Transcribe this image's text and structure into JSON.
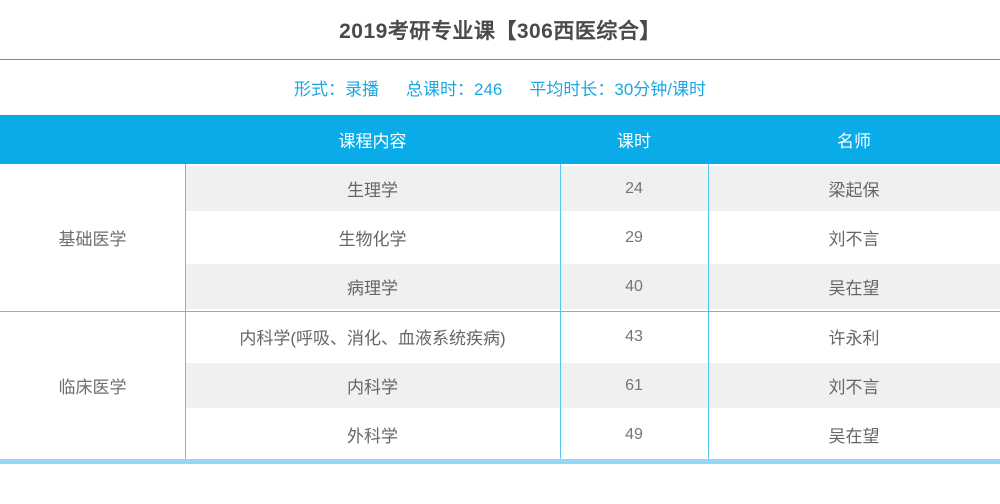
{
  "page": {
    "title": "2019考研专业课【306西医综合】"
  },
  "meta": {
    "format": "形式：录播",
    "total_hours": "总课时：246",
    "avg_duration": "平均时长：30分钟/课时"
  },
  "table": {
    "headers": {
      "content": "课程内容",
      "hours": "课时",
      "teacher": "名师"
    },
    "groups": [
      {
        "category": "基础医学",
        "rows": [
          {
            "content": "生理学",
            "hours": "24",
            "teacher": "梁起保"
          },
          {
            "content": "生物化学",
            "hours": "29",
            "teacher": "刘不言"
          },
          {
            "content": "病理学",
            "hours": "40",
            "teacher": "吴在望"
          }
        ]
      },
      {
        "category": "临床医学",
        "rows": [
          {
            "content": "内科学(呼吸、消化、血液系统疾病)",
            "hours": "43",
            "teacher": "许永利"
          },
          {
            "content": "内科学",
            "hours": "61",
            "teacher": "刘不言"
          },
          {
            "content": "外科学",
            "hours": "49",
            "teacher": "吴在望"
          }
        ]
      }
    ]
  },
  "colors": {
    "header-blue": "#09ace8",
    "accent-line": "#2aa9e0",
    "grid-line": "#54c6ef",
    "bar-light": "#92d9f3",
    "meta-text": "#1ba7e2",
    "row-gray": "#f0f0f0",
    "title-text": "#4a4a4a",
    "body-text": "#666666",
    "num-text": "#757575"
  }
}
